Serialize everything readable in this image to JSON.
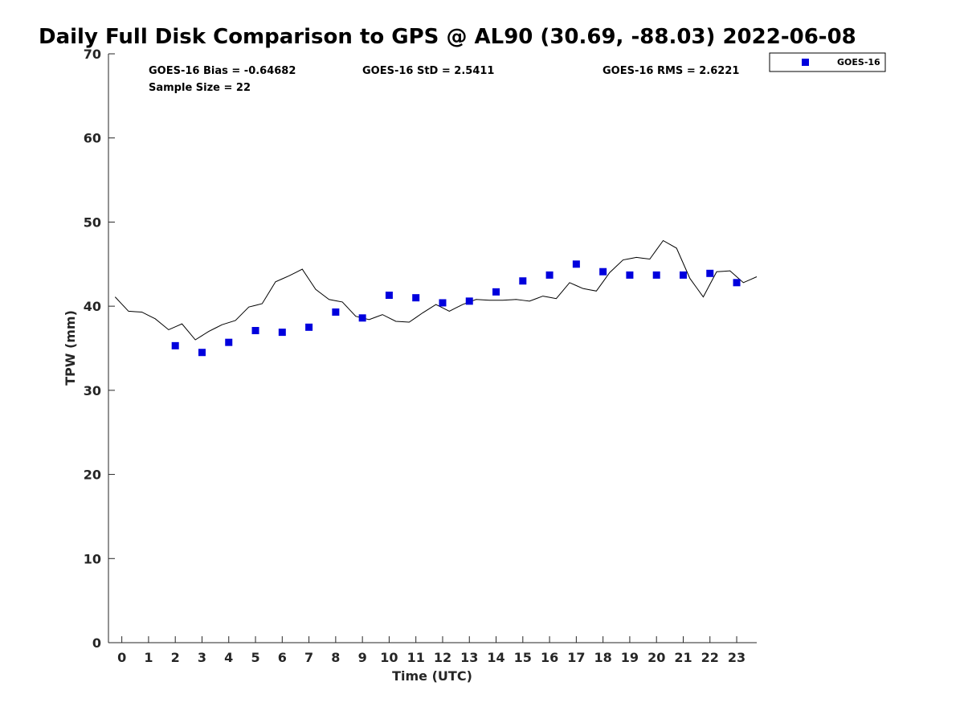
{
  "chart_data": {
    "type": "line",
    "title": "Daily Full Disk Comparison to GPS @ AL90 (30.69, -88.03) 2022-06-08",
    "xlabel": "Time (UTC)",
    "ylabel": "TPW (mm)",
    "xlim": [
      -0.5,
      23.75
    ],
    "ylim": [
      0,
      70
    ],
    "x_ticks": [
      0,
      1,
      2,
      3,
      4,
      5,
      6,
      7,
      8,
      9,
      10,
      11,
      12,
      13,
      14,
      15,
      16,
      17,
      18,
      19,
      20,
      21,
      22,
      23
    ],
    "y_ticks": [
      0,
      10,
      20,
      30,
      40,
      50,
      60,
      70
    ],
    "grid": false,
    "legend_position": "top-right",
    "legend": [
      "GOES-16"
    ],
    "stats": {
      "bias": "GOES-16 Bias = -0.64682",
      "std": "GOES-16 StD = 2.5411",
      "rms": "GOES-16 RMS = 2.6221",
      "sample_size": "Sample Size = 22"
    },
    "series": [
      {
        "style": "line",
        "color": "#000000",
        "x": [
          -0.25,
          0,
          0.25,
          0.5,
          0.75,
          1,
          1.25,
          1.5,
          1.75,
          2,
          2.25,
          2.5,
          2.75,
          3,
          3.25,
          3.5,
          3.75,
          4,
          4.25,
          4.5,
          4.75,
          5,
          5.25,
          5.5,
          5.75,
          6,
          6.25,
          6.5,
          6.75,
          7,
          7.25,
          7.5,
          7.75,
          8,
          8.25,
          8.5,
          8.75,
          9,
          9.25,
          9.5,
          9.75,
          10,
          10.25,
          10.5,
          10.75,
          11,
          11.25,
          11.5,
          11.75,
          12,
          12.25,
          12.5,
          12.75,
          13,
          13.25,
          13.5,
          13.75,
          14,
          14.25,
          14.5,
          14.75,
          15,
          15.25,
          15.5,
          15.75,
          16,
          16.25,
          16.5,
          16.75,
          17,
          17.25,
          17.5,
          17.75,
          18,
          18.25,
          18.5,
          18.75,
          19,
          19.25,
          19.5,
          19.75,
          20,
          20.25,
          20.5,
          20.75,
          21,
          21.25,
          21.5,
          21.75,
          22,
          22.25,
          22.5,
          22.75,
          23,
          23.25,
          23.5,
          23.75
        ],
        "values": [
          41.1,
          40.25,
          39.4,
          39.35,
          39.3,
          38.9,
          38.5,
          37.85,
          37.2,
          37.55,
          37.9,
          36.95,
          36,
          36.5,
          37,
          37.4,
          37.8,
          38.05,
          38.3,
          39.1,
          39.9,
          40.1,
          40.3,
          41.6,
          42.9,
          43.25,
          43.6,
          44,
          44.4,
          43.2,
          42,
          41.4,
          40.8,
          40.65,
          40.5,
          39.65,
          38.8,
          38.6,
          38.4,
          38.7,
          39,
          38.6,
          38.2,
          38.15,
          38.1,
          38.65,
          39.2,
          39.7,
          40.2,
          39.8,
          39.4,
          39.8,
          40.2,
          40.5,
          40.8,
          40.75,
          40.7,
          40.7,
          40.7,
          40.75,
          40.8,
          40.7,
          40.6,
          40.9,
          41.2,
          41.05,
          40.9,
          41.85,
          42.8,
          42.45,
          42.1,
          41.95,
          41.8,
          42.9,
          44,
          44.75,
          45.5,
          45.65,
          45.8,
          45.7,
          45.6,
          46.7,
          47.8,
          47.35,
          46.9,
          45.1,
          43.3,
          42.2,
          41.1,
          42.6,
          44.1,
          44.15,
          44.2,
          43.5,
          42.8,
          43.15,
          43.5
        ]
      },
      {
        "name": "GOES-16",
        "style": "square-markers",
        "color": "#0000dd",
        "x": [
          2,
          3,
          4,
          5,
          6,
          7,
          8,
          9,
          10,
          11,
          12,
          13,
          14,
          15,
          16,
          17,
          18,
          19,
          20,
          21,
          22,
          23
        ],
        "values": [
          35.3,
          34.5,
          35.7,
          37.1,
          36.9,
          37.5,
          39.3,
          38.6,
          41.3,
          41,
          40.4,
          40.6,
          41.7,
          43,
          43.7,
          45,
          44.1,
          43.7,
          43.7,
          43.7,
          43.9,
          42.8
        ]
      }
    ]
  }
}
